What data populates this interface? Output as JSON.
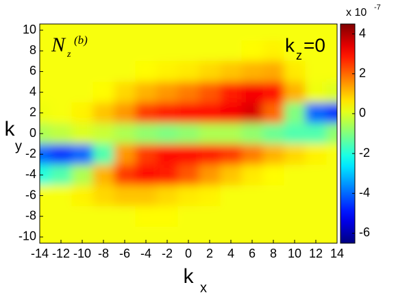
{
  "chart_data": {
    "type": "heatmap",
    "x": [
      -14,
      -12,
      -10,
      -8,
      -6,
      -4,
      -2,
      0,
      2,
      4,
      6,
      8,
      10,
      12,
      14
    ],
    "y": [
      10,
      8,
      6,
      4,
      2,
      0,
      -2,
      -4,
      -6,
      -8,
      -10
    ],
    "values": [
      [
        0.3,
        0.3,
        0.3,
        0.3,
        0.3,
        0.3,
        0.3,
        0.3,
        0.3,
        0.3,
        0.3,
        0.3,
        0.3,
        0.3,
        0.3
      ],
      [
        0.3,
        0.3,
        0.3,
        0.3,
        0.3,
        0.3,
        0.3,
        0.3,
        0.3,
        0.3,
        0.4,
        0.5,
        0.3,
        0.3,
        0.3
      ],
      [
        0.3,
        0.3,
        0.3,
        0.3,
        0.3,
        0.4,
        0.5,
        0.6,
        0.8,
        1,
        1.2,
        1.3,
        0.6,
        0.3,
        0.3
      ],
      [
        0.3,
        0.3,
        0.3,
        0.4,
        0.8,
        1.2,
        1.5,
        1.8,
        2.2,
        2.8,
        3.2,
        3,
        1.2,
        0.2,
        0
      ],
      [
        0.2,
        0.3,
        0.5,
        1,
        1.5,
        2.5,
        2.8,
        3,
        3,
        3.2,
        3.5,
        2,
        -1,
        -4,
        -4.5
      ],
      [
        -0.5,
        -0.3,
        0,
        -0.2,
        -0.5,
        -0.8,
        -1,
        -0.8,
        -0.5,
        -0.5,
        -0.8,
        -1.2,
        -1.5,
        -1.5,
        -0.8
      ],
      [
        -4,
        -4.5,
        -4,
        -1.5,
        1.5,
        2.5,
        3,
        3,
        2.8,
        2.5,
        1.8,
        1.2,
        0.8,
        0.5,
        0.3
      ],
      [
        -2,
        -1.5,
        -0.5,
        1.2,
        2.5,
        3,
        2.8,
        2.2,
        1.5,
        1,
        0.6,
        0.4,
        0.3,
        0.3,
        0.3
      ],
      [
        0.3,
        0.3,
        0.5,
        0.8,
        1,
        1,
        0.8,
        0.6,
        0.5,
        0.3,
        0.3,
        0.3,
        0.3,
        0.3,
        0.3
      ],
      [
        0.3,
        0.3,
        0.3,
        0.3,
        0.3,
        0.4,
        0.4,
        0.3,
        0.3,
        0.3,
        0.3,
        0.3,
        0.3,
        0.3,
        0.3
      ],
      [
        0.3,
        0.3,
        0.3,
        0.3,
        0.3,
        0.3,
        0.3,
        0.3,
        0.3,
        0.3,
        0.3,
        0.3,
        0.3,
        0.3,
        0.3
      ]
    ],
    "colormap": "jet",
    "xlim": [
      -14,
      14
    ],
    "ylim": [
      -10.6,
      10.6
    ],
    "xticks": [
      -14,
      -12,
      -10,
      -8,
      -6,
      -4,
      -2,
      0,
      2,
      4,
      6,
      8,
      10,
      12,
      14
    ],
    "yticks": [
      -10,
      -8,
      -6,
      -4,
      -2,
      0,
      2,
      4,
      6,
      8,
      10
    ],
    "xlabel": "k",
    "xlabel_sub": "x",
    "ylabel": "k",
    "ylabel_sub": "y",
    "annotation": {
      "text": "k",
      "sub": "z",
      "rest": "=0"
    },
    "math_label": {
      "text": "N",
      "sub": "z",
      "sup": "(b)"
    },
    "colorbar": {
      "clim": [
        -6.5,
        4.5
      ],
      "ticks": [
        -6,
        -4,
        -2,
        0,
        2,
        4
      ],
      "multiplier": "x 10",
      "exponent": "-7"
    }
  }
}
